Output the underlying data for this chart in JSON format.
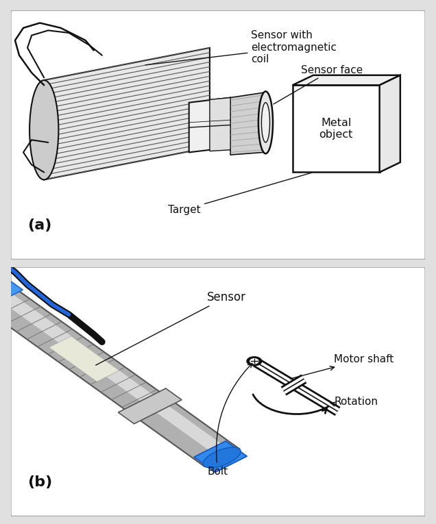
{
  "bg_color": "#e0e0e0",
  "panel_bg": "#ffffff",
  "border_color": "#aaaaaa",
  "label_a": "(a)",
  "label_b": "(b)",
  "panel_a_labels": {
    "sensor_coil": "Sensor with\nelectromagnetic\ncoil",
    "sensor_face": "Sensor face",
    "metal_object": "Metal\nobject",
    "target": "Target"
  },
  "panel_b_labels": {
    "sensor": "Sensor",
    "motor_shaft": "Motor shaft",
    "rotation": "Rotation",
    "bolt": "Bolt"
  },
  "text_color": "#111111",
  "line_color": "#111111",
  "font_size_labels": 11,
  "font_size_ab": 16
}
